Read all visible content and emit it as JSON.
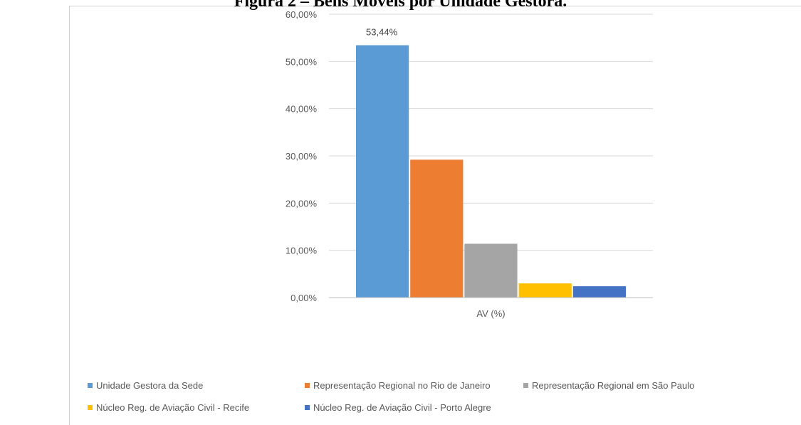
{
  "chart_data": {
    "type": "bar",
    "title": "Figura 2 – Bens Móveis por Unidade Gestora.",
    "xlabel": "",
    "ylabel": "",
    "categories": [
      "AV (%)"
    ],
    "ylim": [
      0,
      60
    ],
    "yticks": [
      "0,00%",
      "10,00%",
      "20,00%",
      "30,00%",
      "40,00%",
      "50,00%",
      "60,00%"
    ],
    "grid": true,
    "legend_position": "bottom",
    "series": [
      {
        "name": "Unidade Gestora da Sede",
        "values": [
          53.44
        ],
        "color": "#5b9bd5",
        "data_label": "53,44%"
      },
      {
        "name": "Representação Regional no Rio de Janeiro",
        "values": [
          29.2
        ],
        "color": "#ed7d31",
        "data_label": ""
      },
      {
        "name": "Representação Regional em São Paulo",
        "values": [
          11.4
        ],
        "color": "#a5a5a5",
        "data_label": ""
      },
      {
        "name": "Núcleo Reg. de Aviação Civil - Recife",
        "values": [
          3.0
        ],
        "color": "#ffc000",
        "data_label": ""
      },
      {
        "name": "Núcleo Reg. de Aviação Civil - Porto Alegre",
        "values": [
          2.4
        ],
        "color": "#4472c4",
        "data_label": ""
      }
    ]
  }
}
